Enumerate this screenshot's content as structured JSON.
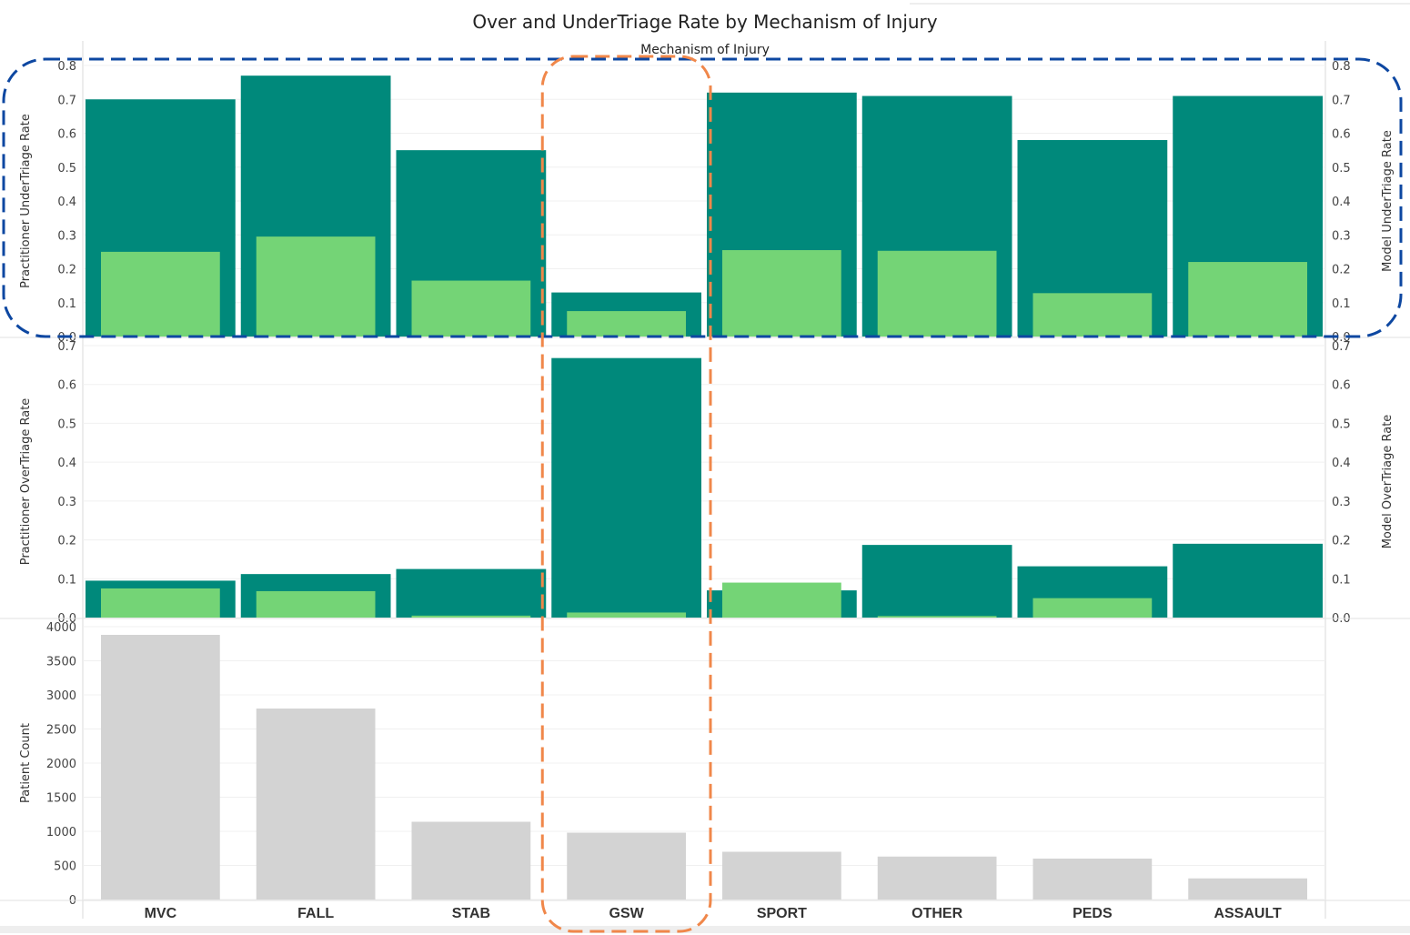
{
  "chart_data": {
    "type": "bar",
    "title": "Over and UnderTriage Rate by Mechanism of Injury",
    "column_header": "Mechanism of Injury",
    "categories": [
      "MVC",
      "FALL",
      "STAB",
      "GSW",
      "SPORT",
      "OTHER",
      "PEDS",
      "ASSAULT"
    ],
    "colors": {
      "practitioner": "#00897B",
      "model": "#74D476",
      "patient_count": "#D3D3D3",
      "highlight_row": "#0D47A1",
      "highlight_column": "#F0874A"
    },
    "panels": [
      {
        "id": "undertriage",
        "left_axis_label": "Practitioner UnderTriage Rate",
        "right_axis_label": "Model UnderTriage Rate",
        "ylim": [
          0,
          0.8
        ],
        "ticks": [
          "0.0",
          "0.1",
          "0.2",
          "0.3",
          "0.4",
          "0.5",
          "0.6",
          "0.7",
          "0.8"
        ],
        "series": [
          {
            "values": [
              0.7,
              0.77,
              0.55,
              0.13,
              0.72,
              0.71,
              0.58,
              0.71
            ]
          },
          {
            "values": [
              0.25,
              0.295,
              0.165,
              0.075,
              0.255,
              0.253,
              0.128,
              0.22
            ]
          }
        ]
      },
      {
        "id": "overtriage",
        "left_axis_label": "Practitioner OverTriage Rate",
        "right_axis_label": "Model OverTriage Rate",
        "ylim": [
          0,
          0.7
        ],
        "ticks": [
          "0.0",
          "0.1",
          "0.2",
          "0.3",
          "0.4",
          "0.5",
          "0.6",
          "0.7"
        ],
        "series": [
          {
            "values": [
              0.095,
              0.112,
              0.125,
              0.668,
              0.07,
              0.187,
              0.132,
              0.19
            ]
          },
          {
            "values": [
              0.075,
              0.068,
              0.005,
              0.013,
              0.09,
              0.004,
              0.05,
              0.0
            ]
          }
        ]
      },
      {
        "id": "patient-count",
        "left_axis_label": "Patient Count",
        "ylim": [
          0,
          4000
        ],
        "ticks": [
          "0",
          "500",
          "1000",
          "1500",
          "2000",
          "2500",
          "3000",
          "3500",
          "4000"
        ],
        "series": [
          {
            "values": [
              3880,
              2800,
              1140,
              980,
              700,
              630,
              600,
              310
            ]
          }
        ]
      }
    ],
    "highlight_category": "GSW",
    "highlight_panel": "undertriage"
  }
}
